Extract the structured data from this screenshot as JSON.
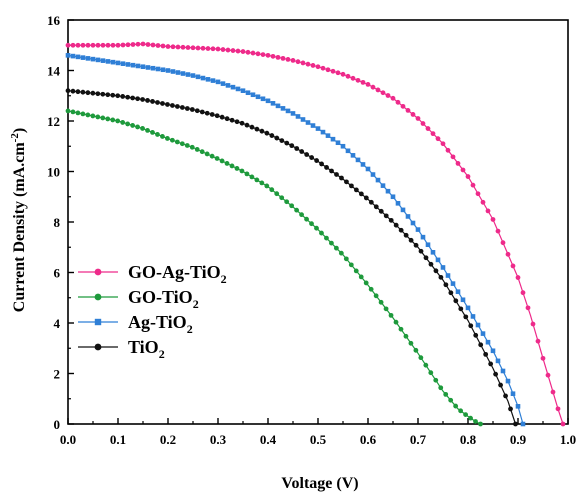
{
  "chart_data": {
    "type": "line",
    "title": "",
    "xlabel": "Voltage (V)",
    "ylabel_parts": {
      "main": "Current Density (mA.cm",
      "sup": "-2",
      "end": ")"
    },
    "xlim": [
      0.0,
      1.0
    ],
    "ylim": [
      0,
      16
    ],
    "xticks": [
      "0.0",
      "0.1",
      "0.2",
      "0.3",
      "0.4",
      "0.5",
      "0.6",
      "0.7",
      "0.8",
      "0.9",
      "1.0"
    ],
    "yticks": [
      "0",
      "2",
      "4",
      "6",
      "8",
      "10",
      "12",
      "14",
      "16"
    ],
    "grid": false,
    "legend_position": "bottom-left",
    "series": [
      {
        "name": "GO-Ag-TiO2",
        "label_main": "GO-Ag-TiO",
        "label_sub": "2",
        "color": "#ee2a8a",
        "marker": "circle",
        "x": [
          0.0,
          0.05,
          0.1,
          0.15,
          0.2,
          0.25,
          0.3,
          0.35,
          0.4,
          0.45,
          0.5,
          0.55,
          0.6,
          0.65,
          0.7,
          0.75,
          0.8,
          0.85,
          0.9,
          0.925,
          0.95,
          0.965,
          0.98,
          0.99
        ],
        "y": [
          15.0,
          15.0,
          15.0,
          15.05,
          14.95,
          14.9,
          14.85,
          14.75,
          14.6,
          14.4,
          14.15,
          13.85,
          13.45,
          12.9,
          12.1,
          11.1,
          9.8,
          8.1,
          5.8,
          4.3,
          2.6,
          1.6,
          0.6,
          0.0
        ]
      },
      {
        "name": "GO-TiO2",
        "label_main": "GO-TiO",
        "label_sub": "2",
        "color": "#1e9a3c",
        "marker": "circle",
        "x": [
          0.0,
          0.05,
          0.1,
          0.15,
          0.2,
          0.25,
          0.3,
          0.35,
          0.4,
          0.45,
          0.5,
          0.55,
          0.6,
          0.65,
          0.7,
          0.75,
          0.78,
          0.8,
          0.815,
          0.825
        ],
        "y": [
          12.4,
          12.2,
          12.0,
          11.7,
          11.3,
          10.95,
          10.5,
          10.0,
          9.4,
          8.6,
          7.7,
          6.7,
          5.5,
          4.2,
          2.8,
          1.3,
          0.6,
          0.3,
          0.1,
          0.0
        ]
      },
      {
        "name": "Ag-TiO2",
        "label_main": "Ag-TiO",
        "label_sub": "2",
        "color": "#2f7fd6",
        "marker": "square",
        "x": [
          0.0,
          0.05,
          0.1,
          0.15,
          0.2,
          0.25,
          0.3,
          0.35,
          0.4,
          0.45,
          0.5,
          0.55,
          0.6,
          0.65,
          0.7,
          0.75,
          0.8,
          0.85,
          0.88,
          0.9,
          0.91
        ],
        "y": [
          14.6,
          14.45,
          14.3,
          14.15,
          14.0,
          13.8,
          13.55,
          13.2,
          12.8,
          12.3,
          11.7,
          11.0,
          10.1,
          9.0,
          7.7,
          6.2,
          4.6,
          2.9,
          1.7,
          0.7,
          0.0
        ]
      },
      {
        "name": "TiO2",
        "label_main": "TiO",
        "label_sub": "2",
        "color": "#111111",
        "marker": "circle",
        "x": [
          0.0,
          0.05,
          0.1,
          0.15,
          0.2,
          0.25,
          0.3,
          0.35,
          0.4,
          0.45,
          0.5,
          0.55,
          0.6,
          0.65,
          0.7,
          0.75,
          0.8,
          0.85,
          0.88,
          0.895
        ],
        "y": [
          13.2,
          13.1,
          13.0,
          12.85,
          12.65,
          12.45,
          12.2,
          11.9,
          11.5,
          11.0,
          10.4,
          9.7,
          8.9,
          8.0,
          7.0,
          5.7,
          4.1,
          2.2,
          0.9,
          0.0
        ]
      }
    ]
  }
}
